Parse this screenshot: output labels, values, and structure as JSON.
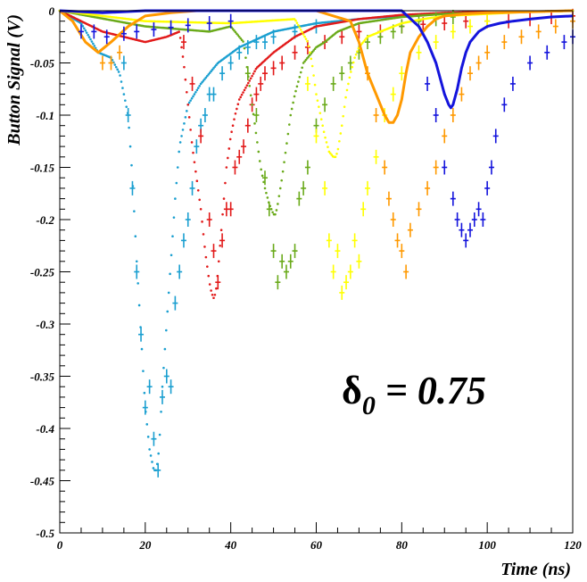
{
  "chart_data": {
    "type": "scatter",
    "xlabel": "Time (ns)",
    "ylabel": "Button Signal (V)",
    "xlim": [
      0,
      120
    ],
    "ylim": [
      -0.5,
      0
    ],
    "x_ticks": [
      0,
      20,
      40,
      60,
      80,
      100,
      120
    ],
    "y_ticks": [
      0,
      -0.05,
      -0.1,
      -0.15,
      -0.2,
      -0.25,
      -0.3,
      -0.35,
      -0.4,
      -0.45,
      -0.5
    ],
    "x_tick_labels": [
      "0",
      "20",
      "40",
      "60",
      "80",
      "100",
      "120"
    ],
    "y_tick_labels": [
      "0",
      "-0.05",
      "-0.1",
      "-0.15",
      "-0.2",
      "-0.25",
      "-0.3",
      "-0.35",
      "-0.4",
      "-0.45",
      "-0.5"
    ],
    "annotation": {
      "symbol": "δ",
      "subscript": "0",
      "text": " = 0.75"
    },
    "series": [
      {
        "color": "#1a9fd0",
        "style": "dotted",
        "x": [
          0,
          5,
          9,
          12,
          14,
          16,
          17,
          18,
          19,
          20,
          21,
          22,
          22.5,
          23,
          23.5,
          24,
          25,
          26,
          27,
          28,
          30,
          33,
          37,
          42,
          50,
          60,
          70,
          80,
          90,
          100,
          110,
          120
        ],
        "y": [
          0,
          -0.012,
          -0.04,
          -0.045,
          -0.06,
          -0.1,
          -0.16,
          -0.24,
          -0.31,
          -0.38,
          -0.42,
          -0.44,
          -0.44,
          -0.43,
          -0.4,
          -0.36,
          -0.3,
          -0.24,
          -0.18,
          -0.13,
          -0.09,
          -0.07,
          -0.05,
          -0.035,
          -0.02,
          -0.012,
          -0.008,
          -0.005,
          -0.003,
          -0.002,
          -0.001,
          0
        ]
      },
      {
        "color": "#1a9fd0",
        "style": "errorbar",
        "x": [
          15,
          16,
          17,
          18,
          19,
          20,
          21,
          22,
          23,
          24,
          25,
          26,
          27,
          28,
          29,
          30,
          31,
          32,
          33,
          34,
          35,
          36,
          38,
          40,
          42,
          44,
          46,
          48,
          50,
          55,
          60
        ],
        "y": [
          -0.05,
          -0.1,
          -0.17,
          -0.25,
          -0.31,
          -0.38,
          -0.36,
          -0.41,
          -0.44,
          -0.37,
          -0.35,
          -0.36,
          -0.28,
          -0.25,
          -0.22,
          -0.2,
          -0.17,
          -0.13,
          -0.11,
          -0.1,
          -0.08,
          -0.08,
          -0.06,
          -0.05,
          -0.04,
          -0.035,
          -0.03,
          -0.03,
          -0.025,
          -0.02,
          -0.015
        ]
      },
      {
        "color": "#e21a1a",
        "style": "dotted",
        "x": [
          0,
          10,
          20,
          25,
          28,
          29,
          30,
          31,
          32,
          33,
          34,
          35,
          35.5,
          36,
          36.5,
          37,
          38,
          39,
          40,
          41,
          42,
          44,
          46,
          50,
          55,
          60,
          70,
          80,
          90,
          100,
          110,
          120
        ],
        "y": [
          0,
          -0.02,
          -0.03,
          -0.025,
          -0.02,
          -0.05,
          -0.09,
          -0.13,
          -0.16,
          -0.19,
          -0.23,
          -0.26,
          -0.27,
          -0.275,
          -0.27,
          -0.25,
          -0.2,
          -0.15,
          -0.12,
          -0.1,
          -0.085,
          -0.07,
          -0.055,
          -0.04,
          -0.025,
          -0.015,
          -0.008,
          -0.004,
          -0.002,
          -0.001,
          -0.001,
          0
        ]
      },
      {
        "color": "#e21a1a",
        "style": "errorbar",
        "x": [
          29,
          31,
          33,
          35,
          36,
          37,
          38,
          39,
          40,
          41,
          42,
          43,
          44,
          45,
          46,
          47,
          48,
          50,
          52,
          55,
          58,
          62,
          66,
          70,
          75,
          80,
          85,
          90,
          95,
          100,
          105,
          110,
          115,
          120
        ],
        "y": [
          -0.03,
          -0.07,
          -0.12,
          -0.2,
          -0.23,
          -0.26,
          -0.22,
          -0.19,
          -0.19,
          -0.15,
          -0.14,
          -0.13,
          -0.11,
          -0.09,
          -0.08,
          -0.07,
          -0.06,
          -0.055,
          -0.05,
          -0.04,
          -0.035,
          -0.03,
          -0.025,
          -0.02,
          -0.02,
          -0.015,
          -0.013,
          -0.012,
          -0.01,
          -0.01,
          -0.01,
          -0.008,
          -0.006,
          -0.005
        ]
      },
      {
        "color": "#6aaa1a",
        "style": "dotted",
        "x": [
          0,
          20,
          35,
          40,
          43,
          44,
          45,
          46,
          47,
          48,
          49,
          50,
          50.5,
          51,
          52,
          53,
          54,
          55,
          56,
          57,
          58,
          60,
          62,
          65,
          70,
          80,
          90,
          100,
          110,
          120
        ],
        "y": [
          0,
          -0.015,
          -0.02,
          -0.015,
          -0.03,
          -0.06,
          -0.09,
          -0.12,
          -0.15,
          -0.17,
          -0.185,
          -0.195,
          -0.195,
          -0.185,
          -0.16,
          -0.13,
          -0.1,
          -0.08,
          -0.065,
          -0.05,
          -0.045,
          -0.035,
          -0.03,
          -0.02,
          -0.012,
          -0.006,
          -0.003,
          -0.002,
          -0.001,
          0
        ]
      },
      {
        "color": "#6aaa1a",
        "style": "errorbar",
        "x": [
          44,
          46,
          48,
          49,
          50,
          51,
          52,
          53,
          54,
          55,
          56,
          57,
          58,
          60,
          62,
          64,
          66,
          68,
          70,
          72,
          75,
          78,
          80,
          84,
          88,
          92
        ],
        "y": [
          -0.06,
          -0.1,
          -0.16,
          -0.19,
          -0.23,
          -0.26,
          -0.24,
          -0.25,
          -0.24,
          -0.23,
          -0.18,
          -0.17,
          -0.15,
          -0.11,
          -0.09,
          -0.07,
          -0.06,
          -0.05,
          -0.04,
          -0.03,
          -0.025,
          -0.02,
          -0.015,
          -0.01,
          -0.008,
          -0.006
        ]
      },
      {
        "color": "#ffff00",
        "style": "dotted",
        "x": [
          0,
          20,
          40,
          55,
          58,
          59,
          60,
          61,
          62,
          63,
          64,
          64.5,
          65,
          66,
          67,
          68,
          69,
          70,
          72,
          75,
          80,
          85,
          90,
          100,
          110,
          120
        ],
        "y": [
          0,
          -0.01,
          -0.012,
          -0.008,
          -0.03,
          -0.05,
          -0.08,
          -0.1,
          -0.12,
          -0.135,
          -0.14,
          -0.14,
          -0.135,
          -0.11,
          -0.08,
          -0.06,
          -0.045,
          -0.035,
          -0.025,
          -0.02,
          -0.012,
          -0.008,
          -0.005,
          -0.003,
          -0.001,
          0
        ]
      },
      {
        "color": "#ffff00",
        "style": "errorbar",
        "x": [
          58,
          60,
          62,
          63,
          64,
          65,
          66,
          67,
          68,
          69,
          70,
          71,
          72,
          74,
          76,
          78,
          80,
          84,
          88,
          92,
          96,
          100
        ],
        "y": [
          -0.07,
          -0.12,
          -0.17,
          -0.22,
          -0.25,
          -0.23,
          -0.27,
          -0.26,
          -0.25,
          -0.22,
          -0.24,
          -0.19,
          -0.17,
          -0.14,
          -0.1,
          -0.08,
          -0.06,
          -0.04,
          -0.03,
          -0.02,
          -0.015,
          -0.01
        ]
      },
      {
        "color": "#ff9900",
        "style": "line",
        "x": [
          0,
          3,
          6,
          9,
          12,
          16,
          20,
          26,
          32,
          40,
          50,
          60,
          68,
          70,
          72,
          74,
          75,
          76,
          77,
          78,
          79,
          80,
          81,
          82,
          84,
          86,
          88,
          90,
          95,
          100,
          110,
          120
        ],
        "y": [
          0,
          -0.01,
          -0.03,
          -0.04,
          -0.03,
          -0.015,
          -0.005,
          -0.002,
          0,
          0,
          0,
          0,
          -0.01,
          -0.03,
          -0.06,
          -0.08,
          -0.09,
          -0.1,
          -0.107,
          -0.107,
          -0.1,
          -0.085,
          -0.06,
          -0.04,
          -0.025,
          -0.015,
          -0.008,
          -0.005,
          -0.003,
          -0.002,
          -0.001,
          0
        ]
      },
      {
        "color": "#ff9900",
        "style": "errorbar",
        "x": [
          10,
          12,
          14,
          72,
          74,
          76,
          77,
          78,
          79,
          80,
          81,
          82,
          84,
          86,
          88,
          90,
          92,
          94,
          96,
          98,
          100,
          104,
          108,
          112,
          116,
          120
        ],
        "y": [
          -0.05,
          -0.05,
          -0.04,
          -0.06,
          -0.1,
          -0.15,
          -0.18,
          -0.2,
          -0.22,
          -0.23,
          -0.25,
          -0.21,
          -0.19,
          -0.17,
          -0.15,
          -0.12,
          -0.1,
          -0.08,
          -0.06,
          -0.05,
          -0.04,
          -0.03,
          -0.025,
          -0.02,
          -0.015,
          -0.01
        ]
      },
      {
        "color": "#1414dc",
        "style": "line",
        "x": [
          0,
          10,
          20,
          40,
          60,
          70,
          80,
          84,
          86,
          88,
          89,
          90,
          91,
          91.5,
          92,
          93,
          94,
          95,
          96,
          98,
          100,
          103,
          106,
          110,
          115,
          120
        ],
        "y": [
          0,
          -0.002,
          0,
          0,
          0,
          0,
          0,
          -0.015,
          -0.03,
          -0.05,
          -0.065,
          -0.08,
          -0.09,
          -0.093,
          -0.09,
          -0.075,
          -0.055,
          -0.04,
          -0.03,
          -0.02,
          -0.015,
          -0.012,
          -0.01,
          -0.008,
          -0.006,
          -0.005
        ]
      },
      {
        "color": "#1414dc",
        "style": "errorbar",
        "x": [
          5,
          8,
          11,
          15,
          18,
          22,
          26,
          30,
          35,
          40,
          86,
          88,
          90,
          92,
          93,
          94,
          95,
          96,
          97,
          98,
          99,
          100,
          101,
          102,
          104,
          106,
          110,
          114,
          118,
          120
        ],
        "y": [
          -0.02,
          -0.02,
          -0.025,
          -0.022,
          -0.02,
          -0.018,
          -0.016,
          -0.014,
          -0.012,
          -0.01,
          -0.07,
          -0.1,
          -0.15,
          -0.18,
          -0.2,
          -0.21,
          -0.22,
          -0.21,
          -0.2,
          -0.19,
          -0.2,
          -0.17,
          -0.15,
          -0.12,
          -0.09,
          -0.07,
          -0.05,
          -0.04,
          -0.03,
          -0.025
        ]
      }
    ]
  }
}
